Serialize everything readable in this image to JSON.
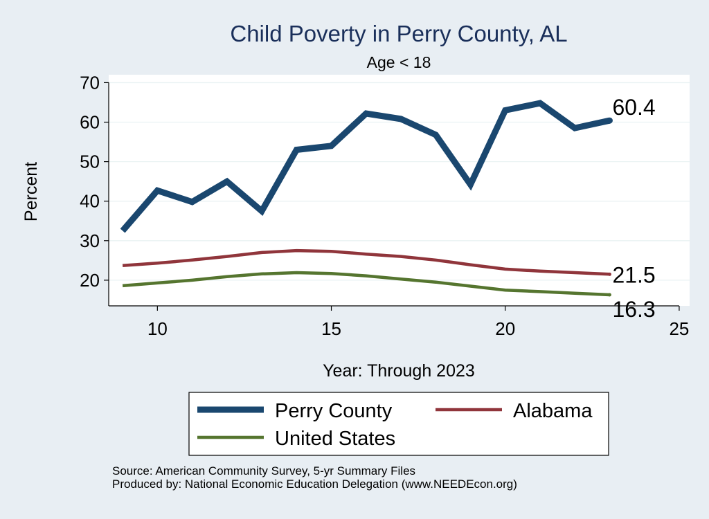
{
  "chart_data": {
    "type": "line",
    "title": "Child Poverty in Perry County, AL",
    "subtitle": "Age < 18",
    "xlabel": "Year: Through 2023",
    "ylabel": "Percent",
    "xlim": [
      8.6,
      25.3
    ],
    "ylim": [
      13.5,
      72
    ],
    "xticks": [
      10,
      15,
      20,
      25
    ],
    "yticks": [
      20,
      30,
      40,
      50,
      60,
      70
    ],
    "grid": true,
    "legend_position": "bottom",
    "x": [
      9,
      10,
      11,
      12,
      13,
      14,
      15,
      16,
      17,
      18,
      19,
      20,
      21,
      22,
      23
    ],
    "series": [
      {
        "name": "Perry County",
        "color": "#1a476f",
        "values": [
          32.5,
          42.7,
          39.8,
          45.0,
          37.5,
          53.0,
          54.0,
          62.2,
          60.8,
          56.8,
          44.2,
          63.0,
          64.8,
          58.5,
          60.4
        ],
        "end_label": "60.4"
      },
      {
        "name": "Alabama",
        "color": "#90353b",
        "values": [
          23.7,
          24.3,
          25.1,
          26.0,
          27.0,
          27.5,
          27.3,
          26.6,
          26.0,
          25.1,
          23.9,
          22.8,
          22.3,
          21.9,
          21.5
        ],
        "end_label": "21.5"
      },
      {
        "name": "United States",
        "color": "#55752f",
        "values": [
          18.6,
          19.3,
          20.0,
          20.9,
          21.6,
          21.9,
          21.7,
          21.1,
          20.3,
          19.5,
          18.5,
          17.5,
          17.1,
          16.7,
          16.3
        ],
        "end_label": "16.3"
      }
    ]
  },
  "footer": {
    "source": "Source: American Community Survey, 5-yr Summary Files",
    "produced_by": "Produced by: National Economic Education Delegation (www.NEEDEcon.org)"
  }
}
